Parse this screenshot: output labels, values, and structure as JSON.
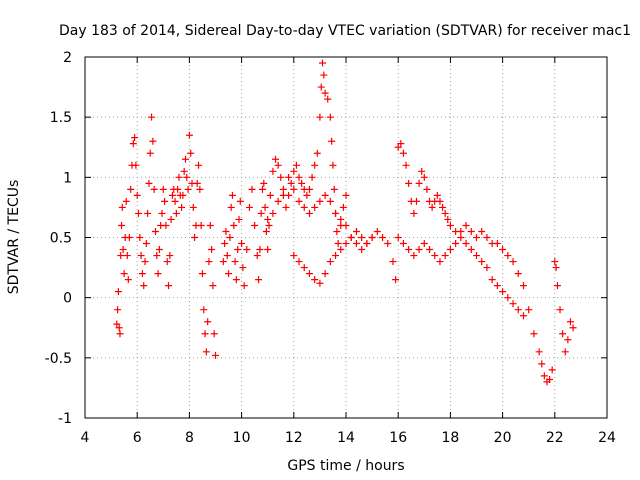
{
  "chart_data": {
    "type": "scatter",
    "title": "Day 183 of 2014, Sidereal Day-to-day VTEC variation (SDTVAR) for receiver mac1",
    "xlabel": "GPS time / hours",
    "ylabel": "SDTVAR / TECUs",
    "xlim": [
      4,
      24
    ],
    "ylim": [
      -1,
      2
    ],
    "xticks": [
      "4",
      "6",
      "8",
      "10",
      "12",
      "14",
      "16",
      "18",
      "20",
      "22",
      "24"
    ],
    "yticks": [
      "-1",
      "-0.5",
      "0",
      "0.5",
      "1",
      "1.5",
      "2"
    ],
    "grid": true,
    "marker": "+",
    "color": "#ff0000",
    "series": [
      {
        "name": "mac1",
        "points": [
          [
            5.22,
            -0.22
          ],
          [
            5.25,
            -0.1
          ],
          [
            5.28,
            0.05
          ],
          [
            5.31,
            -0.25
          ],
          [
            5.34,
            -0.3
          ],
          [
            5.37,
            0.35
          ],
          [
            5.4,
            0.6
          ],
          [
            5.43,
            0.75
          ],
          [
            5.46,
            0.4
          ],
          [
            5.5,
            0.2
          ],
          [
            5.54,
            0.5
          ],
          [
            5.58,
            0.8
          ],
          [
            5.62,
            0.35
          ],
          [
            5.66,
            0.15
          ],
          [
            5.7,
            0.5
          ],
          [
            5.75,
            0.9
          ],
          [
            5.8,
            1.1
          ],
          [
            5.85,
            1.28
          ],
          [
            5.9,
            1.33
          ],
          [
            5.95,
            1.1
          ],
          [
            6.0,
            0.85
          ],
          [
            6.05,
            0.7
          ],
          [
            6.1,
            0.5
          ],
          [
            6.15,
            0.35
          ],
          [
            6.2,
            0.2
          ],
          [
            6.25,
            0.1
          ],
          [
            6.3,
            0.3
          ],
          [
            6.35,
            0.45
          ],
          [
            6.4,
            0.7
          ],
          [
            6.45,
            0.95
          ],
          [
            6.5,
            1.2
          ],
          [
            6.55,
            1.5
          ],
          [
            6.6,
            1.3
          ],
          [
            6.65,
            0.9
          ],
          [
            6.7,
            0.55
          ],
          [
            6.75,
            0.35
          ],
          [
            6.8,
            0.2
          ],
          [
            6.85,
            0.4
          ],
          [
            6.9,
            0.6
          ],
          [
            6.95,
            0.7
          ],
          [
            7.0,
            0.9
          ],
          [
            7.05,
            0.8
          ],
          [
            7.1,
            0.6
          ],
          [
            7.15,
            0.3
          ],
          [
            7.2,
            0.1
          ],
          [
            7.25,
            0.35
          ],
          [
            7.3,
            0.65
          ],
          [
            7.35,
            0.85
          ],
          [
            7.4,
            0.9
          ],
          [
            7.45,
            0.8
          ],
          [
            7.5,
            0.7
          ],
          [
            7.55,
            0.9
          ],
          [
            7.6,
            1.0
          ],
          [
            7.65,
            0.85
          ],
          [
            7.7,
            0.75
          ],
          [
            7.75,
            0.85
          ],
          [
            7.8,
            1.05
          ],
          [
            7.85,
            1.15
          ],
          [
            7.9,
            1.0
          ],
          [
            7.95,
            0.9
          ],
          [
            8.0,
            1.35
          ],
          [
            8.05,
            1.2
          ],
          [
            8.1,
            0.95
          ],
          [
            8.15,
            0.75
          ],
          [
            8.2,
            0.5
          ],
          [
            8.25,
            0.6
          ],
          [
            8.3,
            0.95
          ],
          [
            8.35,
            1.1
          ],
          [
            8.4,
            0.9
          ],
          [
            8.45,
            0.6
          ],
          [
            8.5,
            0.2
          ],
          [
            8.55,
            -0.1
          ],
          [
            8.6,
            -0.3
          ],
          [
            8.65,
            -0.45
          ],
          [
            8.7,
            -0.2
          ],
          [
            8.75,
            0.3
          ],
          [
            8.8,
            0.6
          ],
          [
            8.85,
            0.4
          ],
          [
            8.9,
            0.1
          ],
          [
            8.95,
            -0.3
          ],
          [
            9.0,
            -0.48
          ],
          [
            9.3,
            0.3
          ],
          [
            9.35,
            0.45
          ],
          [
            9.4,
            0.55
          ],
          [
            9.45,
            0.35
          ],
          [
            9.5,
            0.2
          ],
          [
            9.55,
            0.5
          ],
          [
            9.6,
            0.75
          ],
          [
            9.65,
            0.85
          ],
          [
            9.7,
            0.6
          ],
          [
            9.75,
            0.3
          ],
          [
            9.8,
            0.15
          ],
          [
            9.85,
            0.4
          ],
          [
            9.9,
            0.65
          ],
          [
            9.95,
            0.8
          ],
          [
            10.0,
            0.45
          ],
          [
            10.05,
            0.25
          ],
          [
            10.1,
            0.1
          ],
          [
            10.2,
            0.4
          ],
          [
            10.3,
            0.75
          ],
          [
            10.4,
            0.9
          ],
          [
            10.5,
            0.6
          ],
          [
            10.6,
            0.35
          ],
          [
            10.65,
            0.15
          ],
          [
            10.7,
            0.4
          ],
          [
            10.75,
            0.7
          ],
          [
            10.8,
            0.9
          ],
          [
            10.85,
            0.95
          ],
          [
            10.9,
            0.75
          ],
          [
            10.95,
            0.55
          ],
          [
            11.0,
            0.4
          ],
          [
            11.05,
            0.6
          ],
          [
            11.1,
            0.85
          ],
          [
            11.2,
            1.05
          ],
          [
            11.3,
            1.15
          ],
          [
            11.4,
            1.1
          ],
          [
            11.5,
            1.0
          ],
          [
            11.6,
            0.85
          ],
          [
            11.7,
            0.75
          ],
          [
            11.8,
            0.85
          ],
          [
            11.9,
            0.95
          ],
          [
            12.0,
            1.05
          ],
          [
            12.1,
            1.1
          ],
          [
            12.2,
            1.0
          ],
          [
            12.3,
            0.95
          ],
          [
            12.4,
            0.9
          ],
          [
            12.5,
            0.85
          ],
          [
            12.6,
            0.9
          ],
          [
            12.7,
            1.0
          ],
          [
            12.8,
            1.1
          ],
          [
            12.9,
            1.2
          ],
          [
            13.0,
            1.5
          ],
          [
            13.05,
            1.75
          ],
          [
            13.1,
            1.95
          ],
          [
            13.15,
            1.85
          ],
          [
            13.2,
            1.7
          ],
          [
            13.3,
            1.65
          ],
          [
            13.4,
            1.5
          ],
          [
            13.45,
            1.3
          ],
          [
            13.5,
            1.1
          ],
          [
            13.55,
            0.9
          ],
          [
            13.6,
            0.7
          ],
          [
            13.65,
            0.55
          ],
          [
            13.7,
            0.45
          ],
          [
            13.8,
            0.6
          ],
          [
            13.9,
            0.75
          ],
          [
            14.0,
            0.85
          ],
          [
            11.0,
            0.65
          ],
          [
            11.2,
            0.7
          ],
          [
            11.4,
            0.8
          ],
          [
            11.6,
            0.9
          ],
          [
            11.8,
            1.0
          ],
          [
            12.0,
            0.9
          ],
          [
            12.2,
            0.8
          ],
          [
            12.4,
            0.75
          ],
          [
            12.6,
            0.7
          ],
          [
            12.8,
            0.75
          ],
          [
            13.0,
            0.8
          ],
          [
            13.2,
            0.85
          ],
          [
            13.4,
            0.8
          ],
          [
            13.6,
            0.7
          ],
          [
            13.8,
            0.65
          ],
          [
            14.0,
            0.6
          ],
          [
            14.2,
            0.5
          ],
          [
            14.4,
            0.45
          ],
          [
            14.6,
            0.4
          ],
          [
            14.8,
            0.45
          ],
          [
            15.0,
            0.5
          ],
          [
            12.0,
            0.35
          ],
          [
            12.2,
            0.3
          ],
          [
            12.4,
            0.25
          ],
          [
            12.6,
            0.2
          ],
          [
            12.8,
            0.15
          ],
          [
            13.0,
            0.12
          ],
          [
            13.2,
            0.2
          ],
          [
            13.4,
            0.3
          ],
          [
            13.6,
            0.35
          ],
          [
            13.8,
            0.4
          ],
          [
            14.0,
            0.45
          ],
          [
            14.2,
            0.5
          ],
          [
            14.4,
            0.55
          ],
          [
            14.6,
            0.5
          ],
          [
            14.8,
            0.45
          ],
          [
            15.0,
            0.5
          ],
          [
            15.2,
            0.55
          ],
          [
            15.4,
            0.5
          ],
          [
            15.6,
            0.45
          ],
          [
            15.8,
            0.3
          ],
          [
            15.9,
            0.15
          ],
          [
            16.0,
            1.25
          ],
          [
            16.1,
            1.28
          ],
          [
            16.2,
            1.2
          ],
          [
            16.3,
            1.1
          ],
          [
            16.4,
            0.95
          ],
          [
            16.5,
            0.8
          ],
          [
            16.6,
            0.7
          ],
          [
            16.7,
            0.8
          ],
          [
            16.8,
            0.95
          ],
          [
            16.9,
            1.05
          ],
          [
            17.0,
            1.0
          ],
          [
            17.1,
            0.9
          ],
          [
            17.2,
            0.8
          ],
          [
            17.3,
            0.75
          ],
          [
            17.4,
            0.8
          ],
          [
            17.5,
            0.85
          ],
          [
            17.6,
            0.8
          ],
          [
            17.7,
            0.75
          ],
          [
            17.8,
            0.7
          ],
          [
            17.9,
            0.65
          ],
          [
            18.0,
            0.6
          ],
          [
            18.2,
            0.55
          ],
          [
            18.4,
            0.55
          ],
          [
            18.6,
            0.6
          ],
          [
            18.8,
            0.55
          ],
          [
            19.0,
            0.5
          ],
          [
            19.2,
            0.55
          ],
          [
            19.4,
            0.5
          ],
          [
            19.6,
            0.45
          ],
          [
            19.8,
            0.45
          ],
          [
            20.0,
            0.4
          ],
          [
            20.2,
            0.35
          ],
          [
            20.4,
            0.3
          ],
          [
            20.6,
            0.2
          ],
          [
            20.8,
            0.1
          ],
          [
            21.0,
            -0.1
          ],
          [
            21.2,
            -0.3
          ],
          [
            21.4,
            -0.45
          ],
          [
            21.5,
            -0.55
          ],
          [
            21.6,
            -0.65
          ],
          [
            21.7,
            -0.7
          ],
          [
            21.8,
            -0.68
          ],
          [
            21.9,
            -0.6
          ],
          [
            22.0,
            0.3
          ],
          [
            22.05,
            0.25
          ],
          [
            22.1,
            0.1
          ],
          [
            22.2,
            -0.1
          ],
          [
            22.3,
            -0.3
          ],
          [
            22.4,
            -0.45
          ],
          [
            22.5,
            -0.35
          ],
          [
            22.6,
            -0.2
          ],
          [
            22.7,
            -0.25
          ],
          [
            16.0,
            0.5
          ],
          [
            16.2,
            0.45
          ],
          [
            16.4,
            0.4
          ],
          [
            16.6,
            0.35
          ],
          [
            16.8,
            0.4
          ],
          [
            17.0,
            0.45
          ],
          [
            17.2,
            0.4
          ],
          [
            17.4,
            0.35
          ],
          [
            17.6,
            0.3
          ],
          [
            17.8,
            0.35
          ],
          [
            18.0,
            0.4
          ],
          [
            18.2,
            0.45
          ],
          [
            18.4,
            0.5
          ],
          [
            18.6,
            0.45
          ],
          [
            18.8,
            0.4
          ],
          [
            19.0,
            0.35
          ],
          [
            19.2,
            0.3
          ],
          [
            19.4,
            0.25
          ],
          [
            19.6,
            0.15
          ],
          [
            19.8,
            0.1
          ],
          [
            20.0,
            0.05
          ],
          [
            20.2,
            0.0
          ],
          [
            20.4,
            -0.05
          ],
          [
            20.6,
            -0.1
          ],
          [
            20.8,
            -0.15
          ]
        ]
      }
    ]
  }
}
